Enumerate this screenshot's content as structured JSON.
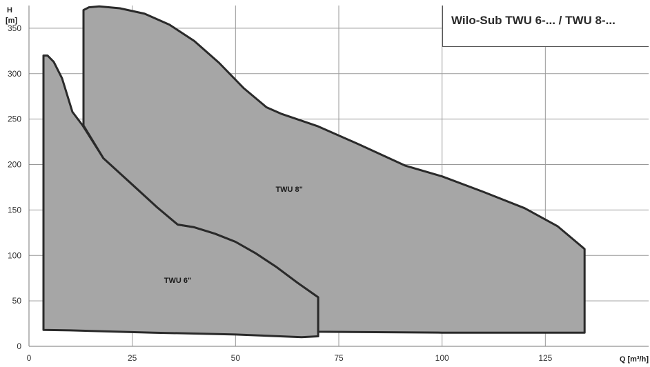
{
  "chart_data": {
    "type": "area",
    "title": "Wilo-Sub TWU 6-... / TWU 8-...",
    "xlabel": "Q [m³/h]",
    "ylabel_top": "H",
    "ylabel_unit": "[m]",
    "xlim": [
      0,
      150
    ],
    "ylim": [
      0,
      375
    ],
    "xticks": [
      "0",
      "25",
      "50",
      "75",
      "100",
      "125"
    ],
    "xtick_values": [
      0,
      25,
      50,
      75,
      100,
      125
    ],
    "yticks": [
      "0",
      "50",
      "100",
      "150",
      "200",
      "250",
      "300",
      "350"
    ],
    "ytick_values": [
      0,
      50,
      100,
      150,
      200,
      250,
      300,
      350
    ],
    "grid": true,
    "series": [
      {
        "name": "TWU 6\"",
        "label_at": [
          36,
          70
        ],
        "points": [
          [
            3.5,
            18
          ],
          [
            3.5,
            320
          ],
          [
            4.5,
            320
          ],
          [
            6,
            313
          ],
          [
            8,
            295
          ],
          [
            10.5,
            258
          ],
          [
            13,
            243
          ],
          [
            18,
            207
          ],
          [
            25,
            178
          ],
          [
            31,
            153
          ],
          [
            36,
            134
          ],
          [
            40,
            131
          ],
          [
            45,
            124
          ],
          [
            50,
            115
          ],
          [
            55,
            102
          ],
          [
            60,
            87
          ],
          [
            65,
            70
          ],
          [
            70,
            54
          ],
          [
            70,
            11
          ],
          [
            66,
            10
          ],
          [
            50,
            13
          ],
          [
            30,
            15
          ],
          [
            10,
            17.5
          ],
          [
            3.5,
            18
          ]
        ]
      },
      {
        "name": "TWU 8\"",
        "label_at": [
          63,
          170
        ],
        "points": [
          [
            13.2,
            243
          ],
          [
            13.2,
            370
          ],
          [
            14.5,
            373
          ],
          [
            17,
            374
          ],
          [
            22,
            372
          ],
          [
            28,
            366
          ],
          [
            34,
            354
          ],
          [
            40,
            336
          ],
          [
            46,
            312
          ],
          [
            52,
            284
          ],
          [
            57.5,
            263
          ],
          [
            61,
            256
          ],
          [
            70,
            242
          ],
          [
            80,
            222
          ],
          [
            91,
            199
          ],
          [
            100,
            187
          ],
          [
            110,
            170
          ],
          [
            120,
            152
          ],
          [
            128,
            132
          ],
          [
            134,
            109
          ],
          [
            134.5,
            107
          ],
          [
            134.5,
            15
          ],
          [
            100,
            15
          ],
          [
            70,
            16
          ],
          [
            70,
            54
          ],
          [
            65,
            70
          ],
          [
            60,
            87
          ],
          [
            55,
            102
          ],
          [
            50,
            115
          ],
          [
            45,
            124
          ],
          [
            40,
            131
          ],
          [
            36,
            134
          ],
          [
            31,
            153
          ],
          [
            25,
            178
          ],
          [
            18,
            207
          ],
          [
            13.2,
            243
          ]
        ]
      }
    ]
  }
}
